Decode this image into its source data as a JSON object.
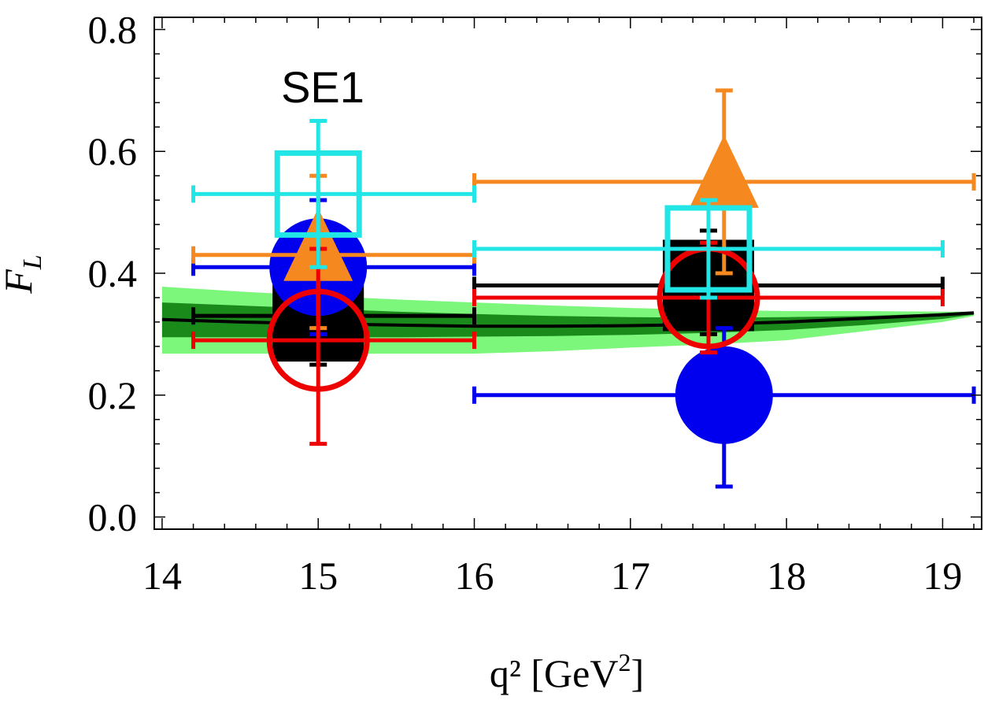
{
  "chart_data": {
    "type": "scatter",
    "xlabel": "q²  [GeV²]",
    "xlabel_main": "q²  [GeV",
    "xlabel_sup": "2",
    "xlabel_close": "]",
    "ylabel": "F_L",
    "ylabel_main": "F",
    "ylabel_sub": "L",
    "annotation": "SE1",
    "xlim": [
      13.95,
      19.25
    ],
    "ylim": [
      -0.02,
      0.82
    ],
    "xticks": [
      14,
      15,
      16,
      17,
      18,
      19
    ],
    "xtick_labels": [
      "14",
      "15",
      "16",
      "17",
      "18",
      "19"
    ],
    "yticks": [
      0.0,
      0.2,
      0.4,
      0.6,
      0.8
    ],
    "ytick_labels": [
      "0.0",
      "0.2",
      "0.4",
      "0.6",
      "0.8"
    ],
    "grid": false,
    "prediction": {
      "central": {
        "x": [
          14.0,
          14.5,
          15.0,
          15.5,
          16.0,
          16.5,
          17.0,
          17.5,
          18.0,
          18.5,
          19.0,
          19.2
        ],
        "y": [
          0.324,
          0.32,
          0.317,
          0.315,
          0.313,
          0.313,
          0.314,
          0.316,
          0.32,
          0.326,
          0.332,
          0.335
        ]
      },
      "outer_band": {
        "x": [
          14.0,
          14.5,
          15.0,
          15.5,
          16.0,
          16.5,
          17.0,
          17.5,
          18.0,
          18.5,
          19.0,
          19.2
        ],
        "lower": [
          0.268,
          0.268,
          0.268,
          0.268,
          0.268,
          0.272,
          0.278,
          0.283,
          0.29,
          0.305,
          0.32,
          0.33
        ],
        "upper": [
          0.378,
          0.37,
          0.363,
          0.357,
          0.352,
          0.347,
          0.343,
          0.34,
          0.338,
          0.338,
          0.337,
          0.337
        ]
      },
      "inner_band": {
        "x": [
          14.0,
          14.5,
          15.0,
          15.5,
          16.0,
          16.5,
          17.0,
          17.5,
          18.0,
          18.5,
          19.0,
          19.2
        ],
        "lower": [
          0.295,
          0.295,
          0.295,
          0.295,
          0.296,
          0.297,
          0.299,
          0.302,
          0.307,
          0.315,
          0.325,
          0.332
        ],
        "upper": [
          0.352,
          0.347,
          0.342,
          0.337,
          0.333,
          0.33,
          0.328,
          0.327,
          0.328,
          0.33,
          0.334,
          0.336
        ]
      }
    },
    "series": [
      {
        "name": "black-square",
        "color": "#000000",
        "marker": "filled-square",
        "points": [
          {
            "x": 15.0,
            "y": 0.33,
            "xerr": [
              14.2,
              16.0
            ],
            "yerr": [
              0.25,
              0.41
            ]
          },
          {
            "x": 17.5,
            "y": 0.38,
            "xerr": [
              16.0,
              19.0
            ],
            "yerr": [
              0.3,
              0.47
            ]
          }
        ]
      },
      {
        "name": "blue-circle",
        "color": "#0000ee",
        "marker": "filled-circle",
        "points": [
          {
            "x": 15.0,
            "y": 0.41,
            "xerr": [
              14.2,
              16.0
            ],
            "yerr": [
              0.3,
              0.52
            ]
          },
          {
            "x": 17.6,
            "y": 0.2,
            "xerr": [
              16.0,
              19.2
            ],
            "yerr": [
              0.05,
              0.31
            ]
          }
        ]
      },
      {
        "name": "orange-triangle",
        "color": "#f5881f",
        "marker": "filled-triangle",
        "points": [
          {
            "x": 15.0,
            "y": 0.43,
            "xerr": [
              14.2,
              16.0
            ],
            "yerr": [
              0.31,
              0.56
            ]
          },
          {
            "x": 17.6,
            "y": 0.55,
            "xerr": [
              16.0,
              19.2
            ],
            "yerr": [
              0.4,
              0.7
            ]
          }
        ]
      },
      {
        "name": "red-open-circle",
        "color": "#ee0000",
        "marker": "open-circle",
        "points": [
          {
            "x": 15.0,
            "y": 0.29,
            "xerr": [
              14.2,
              16.0
            ],
            "yerr": [
              0.12,
              0.44
            ]
          },
          {
            "x": 17.5,
            "y": 0.36,
            "xerr": [
              16.0,
              19.0
            ],
            "yerr": [
              0.27,
              0.45
            ]
          }
        ]
      },
      {
        "name": "cyan-open-square",
        "color": "#22e6e6",
        "marker": "open-square",
        "points": [
          {
            "x": 15.0,
            "y": 0.53,
            "xerr": [
              14.2,
              16.0
            ],
            "yerr": [
              0.41,
              0.65
            ]
          },
          {
            "x": 17.5,
            "y": 0.44,
            "xerr": [
              16.0,
              19.0
            ],
            "yerr": [
              0.36,
              0.52
            ]
          }
        ]
      }
    ],
    "colors": {
      "band_outer": "#7cf77c",
      "band_inner": "#1a8a1a",
      "central_line": "#000000",
      "frame": "#000000"
    }
  }
}
